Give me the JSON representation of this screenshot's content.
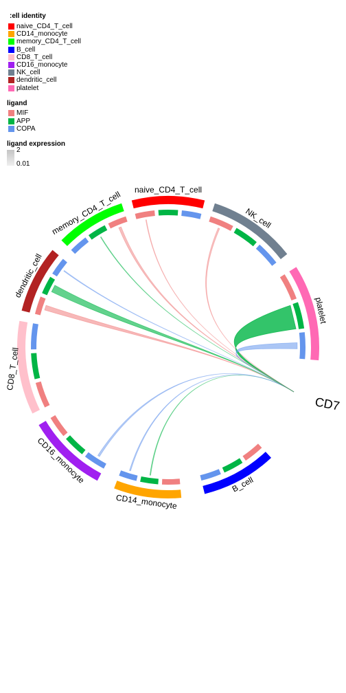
{
  "chart_data": {
    "type": "chord",
    "legends": {
      "cell_identity": {
        "title": ":ell identity",
        "items": [
          {
            "label": "naive_CD4_T_cell",
            "color": "#ff0000"
          },
          {
            "label": "CD14_monocyte",
            "color": "#ffa500"
          },
          {
            "label": "memory_CD4_T_cell",
            "color": "#00ff00"
          },
          {
            "label": "B_cell",
            "color": "#0000ff"
          },
          {
            "label": "CD8_T_cell",
            "color": "#ffc0cb"
          },
          {
            "label": "CD16_monocyte",
            "color": "#a020f0"
          },
          {
            "label": "NK_cell",
            "color": "#708090"
          },
          {
            "label": "dendritic_cell",
            "color": "#b22222"
          },
          {
            "label": "platelet",
            "color": "#ff69b4"
          }
        ]
      },
      "ligand": {
        "title": "ligand",
        "items": [
          {
            "label": "MIF",
            "color": "#f08080"
          },
          {
            "label": "APP",
            "color": "#00b545"
          },
          {
            "label": "COPA",
            "color": "#6495ed"
          }
        ]
      },
      "ligand_expression": {
        "title": "ligand expression",
        "max_label": "2",
        "min_label": "0.01"
      }
    },
    "target_label": "CD7",
    "sectors": [
      {
        "label": "naive_CD4_T_cell",
        "color": "#ff0000"
      },
      {
        "label": "NK_cell",
        "color": "#708090"
      },
      {
        "label": "platelet",
        "color": "#ff69b4"
      },
      {
        "label": "B_cell",
        "color": "#0000ff"
      },
      {
        "label": "CD14_monocyte",
        "color": "#ffa500"
      },
      {
        "label": "CD16_monocyte",
        "color": "#a020f0"
      },
      {
        "label": "CD8_T_cell",
        "color": "#ffc0cb"
      },
      {
        "label": "dendritic_cell",
        "color": "#b22222"
      },
      {
        "label": "memory_CD4_T_cell",
        "color": "#00ff00"
      }
    ],
    "links": [
      {
        "sender": "naive_CD4_T_cell",
        "ligand": "MIF",
        "expression": 0.05
      },
      {
        "sender": "NK_cell",
        "ligand": "MIF",
        "expression": 0.15
      },
      {
        "sender": "platelet",
        "ligand": "APP",
        "expression": 2.0
      },
      {
        "sender": "platelet",
        "ligand": "COPA",
        "expression": 0.5
      },
      {
        "sender": "CD14_monocyte",
        "ligand": "APP",
        "expression": 0.1
      },
      {
        "sender": "CD14_monocyte",
        "ligand": "COPA",
        "expression": 0.15
      },
      {
        "sender": "CD16_monocyte",
        "ligand": "COPA",
        "expression": 0.2
      },
      {
        "sender": "dendritic_cell",
        "ligand": "MIF",
        "expression": 0.6
      },
      {
        "sender": "dendritic_cell",
        "ligand": "APP",
        "expression": 0.9
      },
      {
        "sender": "dendritic_cell",
        "ligand": "COPA",
        "expression": 0.1
      },
      {
        "sender": "memory_CD4_T_cell",
        "ligand": "MIF",
        "expression": 0.3
      },
      {
        "sender": "memory_CD4_T_cell",
        "ligand": "APP",
        "expression": 0.05
      }
    ]
  }
}
